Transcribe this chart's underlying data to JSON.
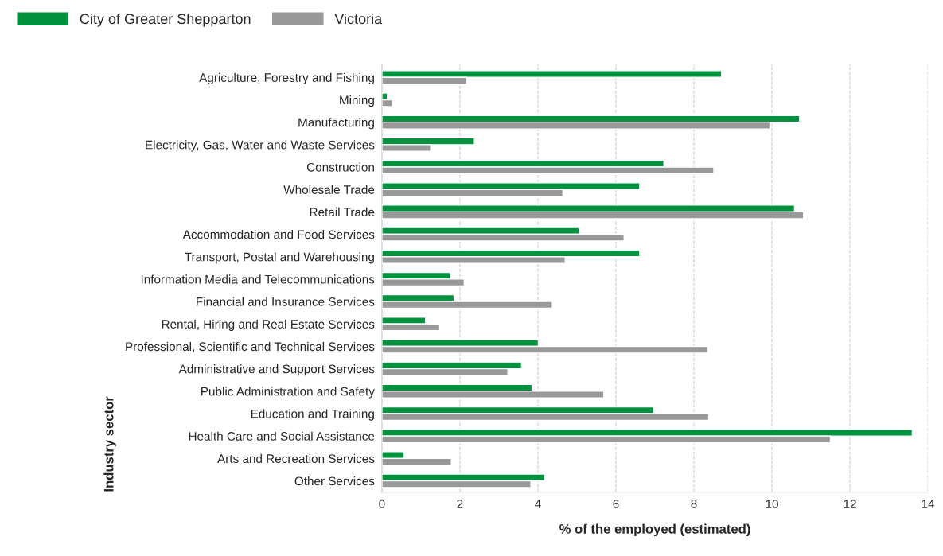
{
  "chart_data": {
    "type": "bar",
    "orientation": "horizontal",
    "xlabel": "% of the employed (estimated)",
    "ylabel": "Industry sector",
    "categories": [
      "Agriculture, Forestry and Fishing",
      "Mining",
      "Manufacturing",
      "Electricity, Gas, Water and Waste Services",
      "Construction",
      "Wholesale Trade",
      "Retail Trade",
      "Accommodation and Food Services",
      "Transport, Postal and Warehousing",
      "Information Media and Telecommunications",
      "Financial and Insurance Services",
      "Rental, Hiring and Real Estate Services",
      "Professional, Scientific and Technical Services",
      "Administrative and Support Services",
      "Public Administration and Safety",
      "Education and Training",
      "Health Care and Social Assistance",
      "Arts and Recreation Services",
      "Other Services"
    ],
    "series": [
      {
        "name": "City of Greater Shepparton",
        "color": "#00923f",
        "values": [
          8.71,
          0.14,
          10.71,
          2.37,
          7.23,
          6.61,
          10.58,
          5.06,
          6.61,
          1.75,
          1.85,
          1.12,
          4.01,
          3.58,
          3.85,
          6.97,
          13.6,
          0.57,
          4.18
        ]
      },
      {
        "name": "Victoria",
        "color": "#999999",
        "values": [
          2.17,
          0.27,
          9.95,
          1.25,
          8.51,
          4.64,
          10.81,
          6.21,
          4.7,
          2.11,
          4.37,
          1.48,
          8.35,
          3.23,
          5.69,
          8.38,
          11.5,
          1.78,
          3.82
        ]
      }
    ],
    "xlim": [
      0,
      14
    ],
    "xticks": [
      0,
      2,
      4,
      6,
      8,
      10,
      12,
      14
    ],
    "grid": "x",
    "legend": "top left"
  }
}
